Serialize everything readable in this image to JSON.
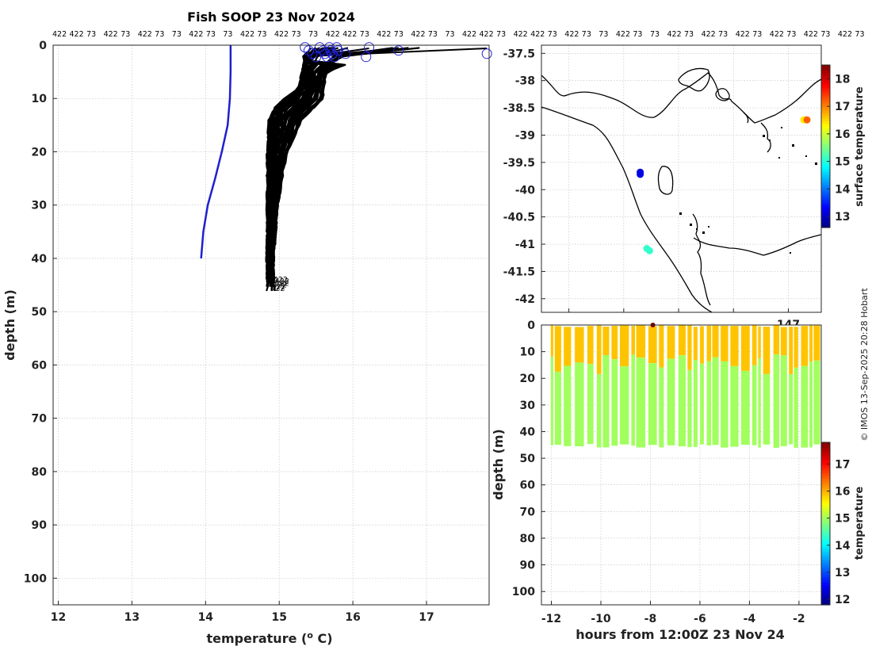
{
  "chart_data": [
    {
      "type": "line",
      "title": "Fish SOOP 23 Nov 2024",
      "xlabel": "temperature (",
      "xlabel_sup": "o",
      "xlabel_unit": " C)",
      "ylabel": "depth (m)",
      "xlim": [
        11.93,
        17.85
      ],
      "ylim": [
        105,
        0
      ],
      "xticks": [
        "12",
        "13",
        "14",
        "15",
        "16",
        "17"
      ],
      "yticks": [
        "0",
        "10",
        "20",
        "30",
        "40",
        "50",
        "60",
        "70",
        "80",
        "90",
        "100"
      ],
      "grid": true,
      "top_labels": [
        "422",
        "422",
        "73",
        "422",
        "73",
        "422",
        "73",
        "73",
        "422",
        "73",
        "73",
        "422",
        "73",
        "422",
        "73",
        "73",
        "422",
        "422",
        "73",
        "422",
        "73",
        "422",
        "73",
        "73",
        "422",
        "422",
        "73",
        "422",
        "422",
        "73",
        "422",
        "73",
        "73",
        "422",
        "73",
        "73",
        "422",
        "73",
        "422",
        "73",
        "422",
        "73",
        "422",
        "73",
        "422",
        "73",
        "422",
        "73",
        "73"
      ],
      "bottom_label": "422",
      "series": [
        {
          "color": "#1f1fd0",
          "x": [
            14.34,
            14.34,
            14.33,
            14.3,
            14.22,
            14.13,
            14.03,
            13.97,
            13.94
          ],
          "y": [
            0,
            5,
            10,
            15,
            20,
            25,
            30,
            35,
            40
          ]
        }
      ],
      "profile_envelope": {
        "color": "#000000",
        "depth": [
          0.5,
          2,
          5,
          8,
          10,
          12,
          14,
          16,
          20,
          30,
          40,
          45
        ],
        "warm_edge": [
          17.82,
          16.2,
          15.65,
          15.6,
          15.6,
          15.45,
          15.3,
          15.25,
          15.1,
          14.98,
          14.92,
          14.93
        ],
        "cool_edge": [
          15.32,
          15.3,
          15.3,
          15.25,
          15.05,
          14.9,
          14.84,
          14.83,
          14.83,
          14.83,
          14.83,
          14.83
        ]
      },
      "surface_markers_x": [
        15.35,
        15.4,
        15.45,
        15.5,
        15.55,
        15.6,
        15.62,
        15.65,
        15.68,
        15.7,
        15.72,
        15.75,
        15.78,
        15.8,
        15.9,
        16.18,
        16.22,
        16.62,
        17.82
      ]
    },
    {
      "type": "heatmap",
      "colorbar_label": "surface temperature",
      "colorbar_ticks": [
        "13",
        "14",
        "15",
        "16",
        "17",
        "18"
      ],
      "clim": [
        12.6,
        18.5
      ],
      "xlim": [
        142.5,
        147.6
      ],
      "ylim": [
        -42.25,
        -37.35
      ],
      "x_tick_labels_visible": [
        "147"
      ],
      "yticks": [
        "-37.5",
        "-38",
        "-38.5",
        "-39",
        "-39.5",
        "-40",
        "-40.5",
        "-41",
        "-41.5",
        "-42"
      ],
      "grid": true,
      "points": [
        {
          "lon": 144.3,
          "lat": -39.68,
          "temp": 13.2
        },
        {
          "lon": 144.3,
          "lat": -39.72,
          "temp": 13.2
        },
        {
          "lon": 144.42,
          "lat": -41.08,
          "temp": 15.1
        },
        {
          "lon": 144.47,
          "lat": -41.12,
          "temp": 15.1
        },
        {
          "lon": 147.28,
          "lat": -38.72,
          "temp": 16.4
        },
        {
          "lon": 147.34,
          "lat": -38.72,
          "temp": 17.2
        }
      ]
    },
    {
      "type": "scatter",
      "xlabel": "hours from 12:00Z 23 Nov 24",
      "ylabel": "depth (m)",
      "xlim": [
        -12.4,
        -1.1
      ],
      "ylim": [
        105,
        0
      ],
      "xticks": [
        "-12",
        "-10",
        "-8",
        "-6",
        "-4",
        "-2"
      ],
      "yticks": [
        "0",
        "10",
        "20",
        "30",
        "40",
        "50",
        "60",
        "70",
        "80",
        "90",
        "100"
      ],
      "colorbar_label": "temperature",
      "colorbar_ticks": [
        "12",
        "13",
        "14",
        "15",
        "16",
        "17"
      ],
      "clim": [
        11.8,
        17.8
      ],
      "upper_layer": {
        "depth": [
          0,
          15
        ],
        "temp": 15.9
      },
      "lower_layer": {
        "depth": [
          15,
          45
        ],
        "temp": 15.0
      },
      "max_depth": 45,
      "outlier": {
        "hours": -7.9,
        "depth": 0,
        "temp": 17.8
      }
    }
  ],
  "credit": "© IMOS 13-Sep-2025 20:28 Hobart"
}
